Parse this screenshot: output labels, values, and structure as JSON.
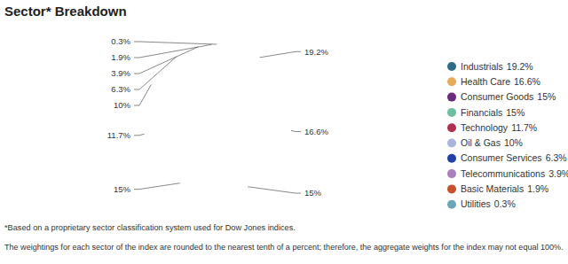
{
  "chart_data": {
    "type": "pie",
    "title": "Sector* Breakdown",
    "categories": [
      "Industrials",
      "Health Care",
      "Consumer Goods",
      "Financials",
      "Technology",
      "Oil & Gas",
      "Consumer Services",
      "Telecommunications",
      "Basic Materials",
      "Utilities"
    ],
    "values": [
      19.2,
      16.6,
      15,
      15,
      11.7,
      10,
      6.3,
      3.9,
      1.9,
      0.3
    ],
    "value_labels": [
      "19.2%",
      "16.6%",
      "15%",
      "15%",
      "11.7%",
      "10%",
      "6.3%",
      "3.9%",
      "1.9%",
      "0.3%"
    ],
    "colors": [
      "#2b6d88",
      "#e8a95b",
      "#6c2a7f",
      "#6cbf9f",
      "#b0304f",
      "#aab5dd",
      "#2141a8",
      "#a880ba",
      "#c9512b",
      "#6ba8b6"
    ],
    "data_labels": true,
    "legend": "right",
    "footnotes": [
      "*Based on a proprietary sector classification system used for Dow Jones indices.",
      "The weightings for each sector of the index are rounded to the nearest tenth of a percent; therefore, the aggregate weights for the index may not equal 100%."
    ]
  }
}
